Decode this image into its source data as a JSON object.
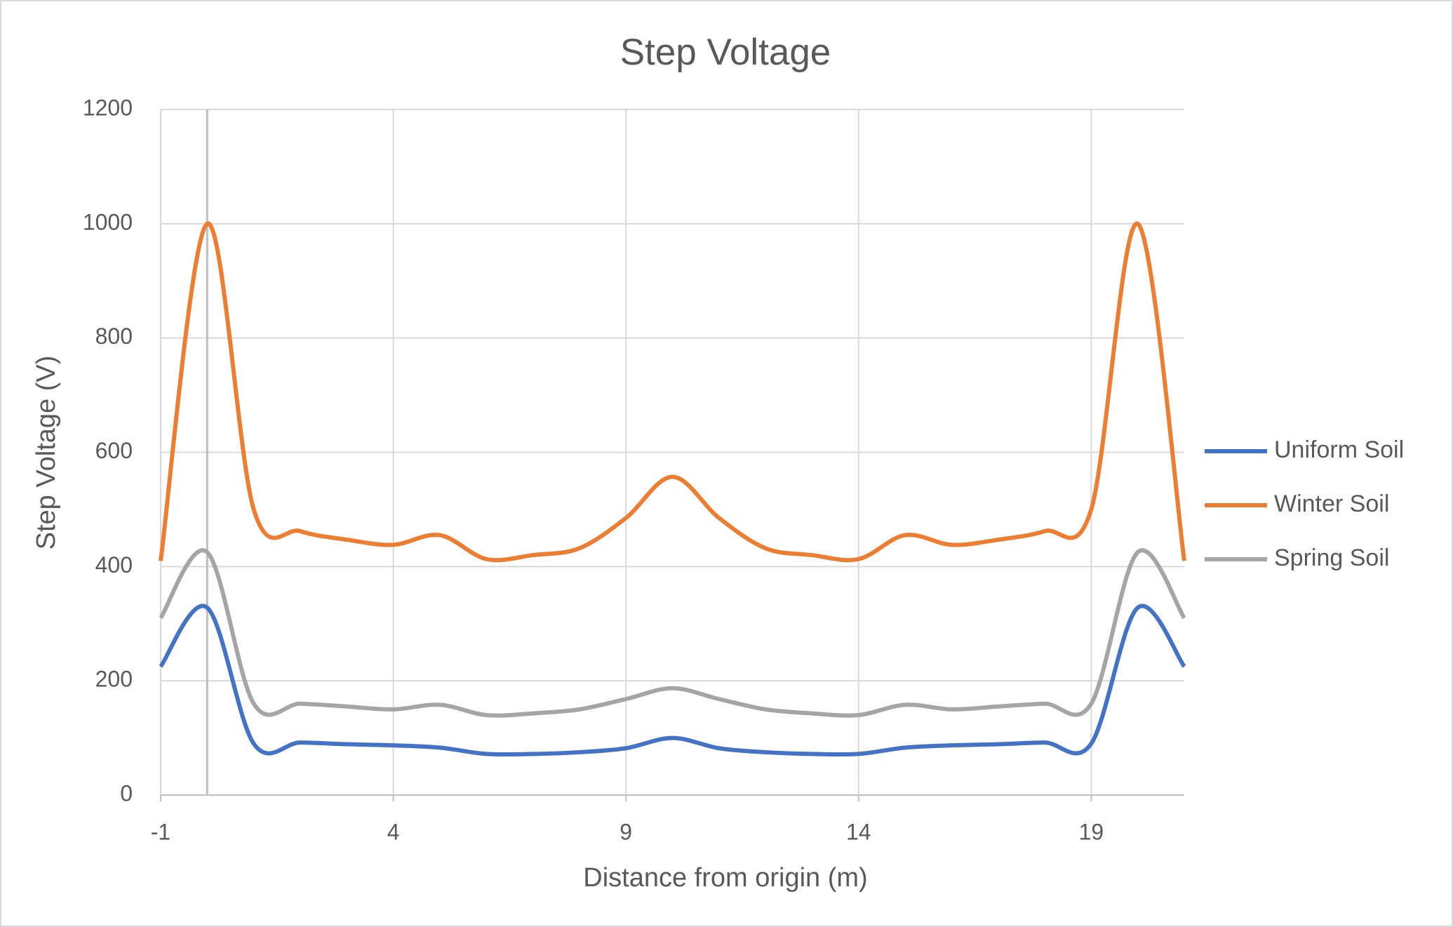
{
  "chart_data": {
    "type": "line",
    "title": "Step Voltage",
    "x_label": "Distance from origin (m)",
    "y_label": "Step Voltage (V)",
    "x": [
      -1,
      0,
      1,
      2,
      3,
      4,
      5,
      6,
      7,
      8,
      9,
      10,
      11,
      12,
      13,
      14,
      15,
      16,
      17,
      18,
      19,
      20,
      21
    ],
    "series": [
      {
        "name": "Uniform Soil",
        "color": "#4472c4",
        "values": [
          225,
          328,
          90,
          92,
          89,
          87,
          83,
          72,
          72,
          75,
          82,
          100,
          82,
          75,
          72,
          72,
          83,
          87,
          89,
          92,
          90,
          328,
          225
        ]
      },
      {
        "name": "Winter Soil",
        "color": "#ed7d31",
        "values": [
          410,
          1000,
          500,
          462,
          447,
          438,
          455,
          413,
          420,
          432,
          485,
          557,
          485,
          432,
          420,
          413,
          455,
          438,
          447,
          462,
          500,
          1000,
          410
        ]
      },
      {
        "name": "Spring Soil",
        "color": "#a5a5a5",
        "values": [
          310,
          425,
          160,
          160,
          155,
          150,
          158,
          140,
          143,
          150,
          168,
          187,
          168,
          150,
          143,
          140,
          158,
          150,
          155,
          160,
          160,
          425,
          310
        ]
      }
    ],
    "xlim": [
      -1,
      21
    ],
    "xticks": [
      -1,
      4,
      9,
      14,
      19
    ],
    "ylim": [
      0,
      1200
    ],
    "yticks": [
      0,
      200,
      400,
      600,
      800,
      1000,
      1200
    ],
    "y_axis_x": 0,
    "grid": true,
    "smooth": true,
    "legend": "right"
  }
}
